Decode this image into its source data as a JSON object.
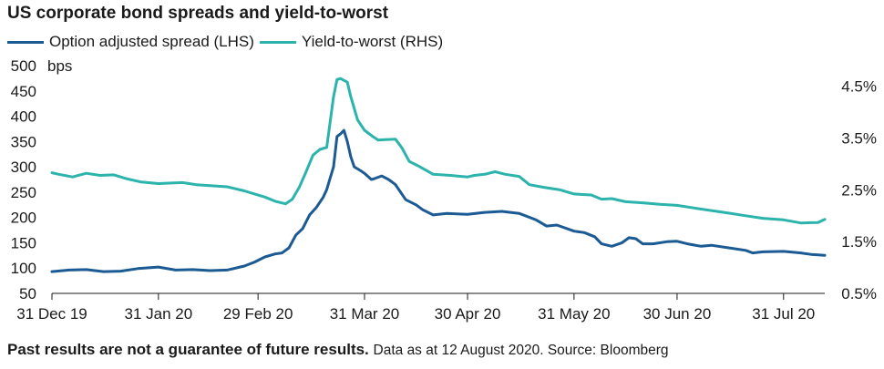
{
  "title": "US corporate bond spreads and yield-to-worst",
  "footer": {
    "disclaimer": "Past results are not a guarantee of future results.",
    "note": "Data as at 12 August 2020. Source: Bloomberg"
  },
  "colors": {
    "oas": "#1b5a93",
    "ytw": "#2bb3ac",
    "axis": "#1a1a1a"
  },
  "chart_data": {
    "type": "line",
    "title": "US corporate bond spreads and yield-to-worst",
    "x_tick_labels": [
      "31 Dec 19",
      "31 Jan 20",
      "29 Feb 20",
      "31 Mar 20",
      "30 Apr 20",
      "31 May 20",
      "30 Jun 20",
      "31 Jul 20"
    ],
    "left_axis": {
      "unit_label": "bps",
      "ylim": [
        50,
        500
      ],
      "ticks": [
        50,
        100,
        150,
        200,
        250,
        300,
        350,
        400,
        450,
        500
      ],
      "tick_labels": [
        "50",
        "100",
        "150",
        "200",
        "250",
        "300",
        "350",
        "400",
        "450",
        "500"
      ]
    },
    "right_axis": {
      "ylim": [
        0.5,
        4.9
      ],
      "ticks": [
        0.5,
        1.5,
        2.5,
        3.5,
        4.5
      ],
      "tick_labels": [
        "0.5%",
        "1.5%",
        "2.5%",
        "3.5%",
        "4.5%"
      ]
    },
    "legend_position": "top-left",
    "grid": false,
    "series": [
      {
        "name": "Option adjusted spread (LHS)",
        "axis": "left",
        "color": "#1b5a93",
        "points": [
          [
            "2019-12-31",
            93
          ],
          [
            "2020-01-05",
            96
          ],
          [
            "2020-01-10",
            97
          ],
          [
            "2020-01-15",
            93
          ],
          [
            "2020-01-20",
            94
          ],
          [
            "2020-01-25",
            99
          ],
          [
            "2020-01-31",
            102
          ],
          [
            "2020-02-05",
            96
          ],
          [
            "2020-02-10",
            97
          ],
          [
            "2020-02-15",
            95
          ],
          [
            "2020-02-20",
            96
          ],
          [
            "2020-02-25",
            104
          ],
          [
            "2020-02-28",
            112
          ],
          [
            "2020-03-02",
            122
          ],
          [
            "2020-03-05",
            128
          ],
          [
            "2020-03-07",
            130
          ],
          [
            "2020-03-09",
            140
          ],
          [
            "2020-03-11",
            165
          ],
          [
            "2020-03-13",
            178
          ],
          [
            "2020-03-15",
            205
          ],
          [
            "2020-03-17",
            220
          ],
          [
            "2020-03-19",
            240
          ],
          [
            "2020-03-20",
            255
          ],
          [
            "2020-03-22",
            300
          ],
          [
            "2020-03-23",
            360
          ],
          [
            "2020-03-24",
            365
          ],
          [
            "2020-03-25",
            372
          ],
          [
            "2020-03-26",
            350
          ],
          [
            "2020-03-27",
            320
          ],
          [
            "2020-03-28",
            300
          ],
          [
            "2020-03-30",
            292
          ],
          [
            "2020-03-31",
            287
          ],
          [
            "2020-04-02",
            275
          ],
          [
            "2020-04-03",
            277
          ],
          [
            "2020-04-05",
            282
          ],
          [
            "2020-04-07",
            275
          ],
          [
            "2020-04-09",
            265
          ],
          [
            "2020-04-12",
            235
          ],
          [
            "2020-04-15",
            225
          ],
          [
            "2020-04-17",
            215
          ],
          [
            "2020-04-20",
            205
          ],
          [
            "2020-04-24",
            208
          ],
          [
            "2020-04-30",
            206
          ],
          [
            "2020-05-05",
            210
          ],
          [
            "2020-05-10",
            212
          ],
          [
            "2020-05-15",
            208
          ],
          [
            "2020-05-20",
            195
          ],
          [
            "2020-05-23",
            183
          ],
          [
            "2020-05-26",
            185
          ],
          [
            "2020-05-31",
            173
          ],
          [
            "2020-06-03",
            170
          ],
          [
            "2020-06-06",
            162
          ],
          [
            "2020-06-08",
            148
          ],
          [
            "2020-06-11",
            143
          ],
          [
            "2020-06-14",
            150
          ],
          [
            "2020-06-16",
            160
          ],
          [
            "2020-06-18",
            158
          ],
          [
            "2020-06-20",
            148
          ],
          [
            "2020-06-23",
            148
          ],
          [
            "2020-06-27",
            152
          ],
          [
            "2020-06-30",
            153
          ],
          [
            "2020-07-03",
            148
          ],
          [
            "2020-07-07",
            143
          ],
          [
            "2020-07-10",
            145
          ],
          [
            "2020-07-15",
            140
          ],
          [
            "2020-07-20",
            135
          ],
          [
            "2020-07-22",
            130
          ],
          [
            "2020-07-25",
            132
          ],
          [
            "2020-07-31",
            133
          ],
          [
            "2020-08-05",
            130
          ],
          [
            "2020-08-08",
            127
          ],
          [
            "2020-08-12",
            125
          ]
        ]
      },
      {
        "name": "Yield-to-worst (RHS)",
        "axis": "right",
        "color": "#2bb3ac",
        "points": [
          [
            "2019-12-31",
            2.83
          ],
          [
            "2020-01-02",
            2.8
          ],
          [
            "2020-01-06",
            2.75
          ],
          [
            "2020-01-10",
            2.82
          ],
          [
            "2020-01-14",
            2.78
          ],
          [
            "2020-01-18",
            2.79
          ],
          [
            "2020-01-22",
            2.71
          ],
          [
            "2020-01-26",
            2.65
          ],
          [
            "2020-01-31",
            2.62
          ],
          [
            "2020-02-03",
            2.63
          ],
          [
            "2020-02-07",
            2.64
          ],
          [
            "2020-02-11",
            2.6
          ],
          [
            "2020-02-15",
            2.58
          ],
          [
            "2020-02-20",
            2.56
          ],
          [
            "2020-02-25",
            2.48
          ],
          [
            "2020-02-28",
            2.42
          ],
          [
            "2020-03-02",
            2.36
          ],
          [
            "2020-03-05",
            2.28
          ],
          [
            "2020-03-08",
            2.23
          ],
          [
            "2020-03-10",
            2.32
          ],
          [
            "2020-03-12",
            2.55
          ],
          [
            "2020-03-14",
            2.85
          ],
          [
            "2020-03-16",
            3.17
          ],
          [
            "2020-03-18",
            3.28
          ],
          [
            "2020-03-20",
            3.32
          ],
          [
            "2020-03-22",
            4.3
          ],
          [
            "2020-03-23",
            4.63
          ],
          [
            "2020-03-24",
            4.65
          ],
          [
            "2020-03-26",
            4.58
          ],
          [
            "2020-03-27",
            4.3
          ],
          [
            "2020-03-29",
            3.85
          ],
          [
            "2020-03-31",
            3.65
          ],
          [
            "2020-04-02",
            3.55
          ],
          [
            "2020-04-04",
            3.46
          ],
          [
            "2020-04-06",
            3.47
          ],
          [
            "2020-04-09",
            3.48
          ],
          [
            "2020-04-11",
            3.3
          ],
          [
            "2020-04-13",
            3.05
          ],
          [
            "2020-04-16",
            2.95
          ],
          [
            "2020-04-20",
            2.8
          ],
          [
            "2020-04-25",
            2.78
          ],
          [
            "2020-04-30",
            2.75
          ],
          [
            "2020-05-02",
            2.78
          ],
          [
            "2020-05-05",
            2.8
          ],
          [
            "2020-05-08",
            2.85
          ],
          [
            "2020-05-11",
            2.8
          ],
          [
            "2020-05-15",
            2.76
          ],
          [
            "2020-05-18",
            2.6
          ],
          [
            "2020-05-22",
            2.55
          ],
          [
            "2020-05-27",
            2.5
          ],
          [
            "2020-05-31",
            2.42
          ],
          [
            "2020-06-05",
            2.4
          ],
          [
            "2020-06-08",
            2.32
          ],
          [
            "2020-06-11",
            2.33
          ],
          [
            "2020-06-15",
            2.27
          ],
          [
            "2020-06-20",
            2.25
          ],
          [
            "2020-06-25",
            2.22
          ],
          [
            "2020-06-30",
            2.2
          ],
          [
            "2020-07-05",
            2.15
          ],
          [
            "2020-07-10",
            2.1
          ],
          [
            "2020-07-15",
            2.05
          ],
          [
            "2020-07-20",
            2.0
          ],
          [
            "2020-07-25",
            1.95
          ],
          [
            "2020-07-31",
            1.92
          ],
          [
            "2020-08-05",
            1.86
          ],
          [
            "2020-08-10",
            1.87
          ],
          [
            "2020-08-12",
            1.93
          ]
        ]
      }
    ]
  }
}
